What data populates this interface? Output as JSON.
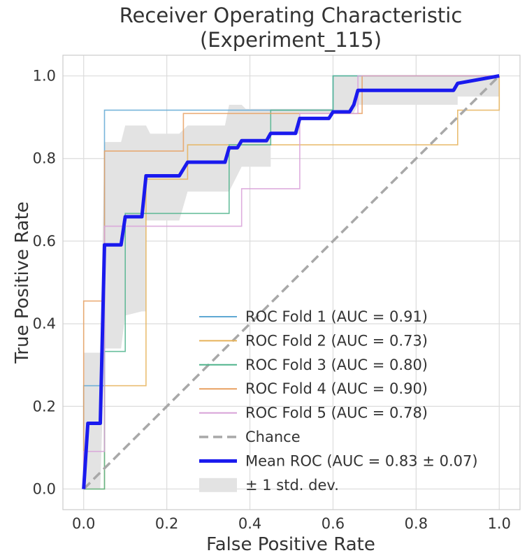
{
  "chart_data": {
    "type": "line",
    "title": [
      "Receiver Operating Characteristic",
      "(Experiment_115)"
    ],
    "xlabel": "False Positive Rate",
    "ylabel": "True Positive Rate",
    "xlim": [
      -0.05,
      1.05
    ],
    "ylim": [
      -0.05,
      1.05
    ],
    "xticks": [
      "0.0",
      "0.2",
      "0.4",
      "0.6",
      "0.8",
      "1.0"
    ],
    "yticks": [
      "0.0",
      "0.2",
      "0.4",
      "0.6",
      "0.8",
      "1.0"
    ],
    "grid": true,
    "legend_position": "lower-right",
    "series": [
      {
        "name": "ROC Fold 1 (AUC = 0.91)",
        "color": "#5fa8d3",
        "points": [
          [
            0,
            0
          ],
          [
            0,
            0.25
          ],
          [
            0.05,
            0.25
          ],
          [
            0.05,
            0.917
          ],
          [
            0.6,
            0.917
          ],
          [
            0.6,
            1
          ],
          [
            1,
            1
          ]
        ]
      },
      {
        "name": "ROC Fold 2 (AUC = 0.73)",
        "color": "#e6b35a",
        "points": [
          [
            0,
            0
          ],
          [
            0.05,
            0
          ],
          [
            0.05,
            0.25
          ],
          [
            0.15,
            0.25
          ],
          [
            0.15,
            0.75
          ],
          [
            0.25,
            0.75
          ],
          [
            0.25,
            0.833
          ],
          [
            0.9,
            0.833
          ],
          [
            0.9,
            0.917
          ],
          [
            1,
            0.917
          ],
          [
            1,
            1
          ]
        ]
      },
      {
        "name": "ROC Fold 3 (AUC = 0.80)",
        "color": "#4fb48c",
        "points": [
          [
            0,
            0
          ],
          [
            0.05,
            0
          ],
          [
            0.05,
            0.333
          ],
          [
            0.1,
            0.333
          ],
          [
            0.1,
            0.667
          ],
          [
            0.35,
            0.667
          ],
          [
            0.35,
            0.833
          ],
          [
            0.45,
            0.833
          ],
          [
            0.45,
            0.917
          ],
          [
            0.6,
            0.917
          ],
          [
            0.6,
            1
          ],
          [
            1,
            1
          ]
        ]
      },
      {
        "name": "ROC Fold 4 (AUC = 0.90)",
        "color": "#e8a060",
        "points": [
          [
            0,
            0
          ],
          [
            0,
            0.455
          ],
          [
            0.05,
            0.455
          ],
          [
            0.05,
            0.818
          ],
          [
            0.24,
            0.818
          ],
          [
            0.24,
            0.909
          ],
          [
            0.67,
            0.909
          ],
          [
            0.67,
            1
          ],
          [
            1,
            1
          ]
        ]
      },
      {
        "name": "ROC Fold 5 (AUC = 0.78)",
        "color": "#d8a0d8",
        "points": [
          [
            0,
            0
          ],
          [
            0,
            0.091
          ],
          [
            0.05,
            0.091
          ],
          [
            0.05,
            0.636
          ],
          [
            0.38,
            0.636
          ],
          [
            0.38,
            0.727
          ],
          [
            0.52,
            0.727
          ],
          [
            0.52,
            0.909
          ],
          [
            0.66,
            0.909
          ],
          [
            0.66,
            1
          ],
          [
            1,
            1
          ]
        ]
      }
    ],
    "chance": {
      "name": "Chance",
      "color": "#a8a8a8",
      "points": [
        [
          0,
          0
        ],
        [
          1,
          1
        ]
      ]
    },
    "mean": {
      "name": "Mean ROC (AUC = 0.83 ± 0.07)",
      "color": "#1a1aee",
      "points": [
        [
          0,
          0
        ],
        [
          0.01,
          0.159
        ],
        [
          0.04,
          0.159
        ],
        [
          0.05,
          0.591
        ],
        [
          0.09,
          0.591
        ],
        [
          0.1,
          0.659
        ],
        [
          0.14,
          0.659
        ],
        [
          0.15,
          0.758
        ],
        [
          0.23,
          0.758
        ],
        [
          0.25,
          0.791
        ],
        [
          0.34,
          0.791
        ],
        [
          0.35,
          0.826
        ],
        [
          0.37,
          0.826
        ],
        [
          0.38,
          0.843
        ],
        [
          0.44,
          0.843
        ],
        [
          0.45,
          0.861
        ],
        [
          0.51,
          0.861
        ],
        [
          0.52,
          0.897
        ],
        [
          0.59,
          0.897
        ],
        [
          0.6,
          0.913
        ],
        [
          0.64,
          0.913
        ],
        [
          0.65,
          0.93
        ],
        [
          0.66,
          0.965
        ],
        [
          0.89,
          0.965
        ],
        [
          0.9,
          0.982
        ],
        [
          1,
          1
        ]
      ]
    },
    "std_band": {
      "name": "± 1 std. dev.",
      "color": "#e3e3e3",
      "upper": [
        [
          0,
          0.04
        ],
        [
          0,
          0.33
        ],
        [
          0.04,
          0.33
        ],
        [
          0.05,
          0.84
        ],
        [
          0.09,
          0.84
        ],
        [
          0.1,
          0.88
        ],
        [
          0.15,
          0.88
        ],
        [
          0.16,
          0.86
        ],
        [
          0.23,
          0.86
        ],
        [
          0.25,
          0.88
        ],
        [
          0.34,
          0.88
        ],
        [
          0.35,
          0.93
        ],
        [
          0.38,
          0.93
        ],
        [
          0.39,
          0.92
        ],
        [
          0.6,
          0.92
        ],
        [
          0.6,
          1
        ],
        [
          1,
          1
        ]
      ],
      "lower": [
        [
          1,
          0.95
        ],
        [
          0.9,
          0.95
        ],
        [
          0.9,
          0.93
        ],
        [
          0.66,
          0.93
        ],
        [
          0.65,
          0.91
        ],
        [
          0.52,
          0.91
        ],
        [
          0.52,
          0.86
        ],
        [
          0.45,
          0.86
        ],
        [
          0.45,
          0.78
        ],
        [
          0.38,
          0.78
        ],
        [
          0.35,
          0.72
        ],
        [
          0.25,
          0.72
        ],
        [
          0.23,
          0.65
        ],
        [
          0.15,
          0.65
        ],
        [
          0.15,
          0.43
        ],
        [
          0.14,
          0.43
        ],
        [
          0.1,
          0.42
        ],
        [
          0.09,
          0.34
        ],
        [
          0.05,
          0.34
        ],
        [
          0.04,
          0
        ],
        [
          0,
          0
        ]
      ]
    }
  }
}
